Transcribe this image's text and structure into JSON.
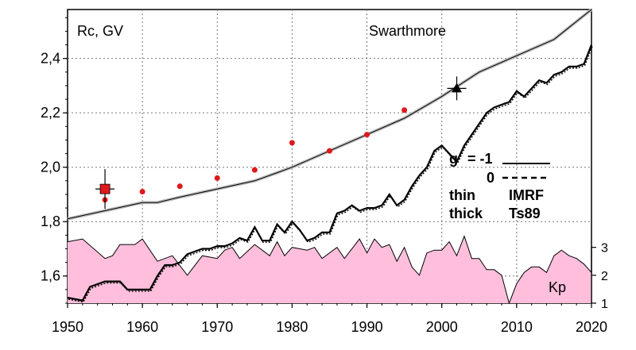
{
  "chart_data": {
    "type": "line",
    "ylabel": "Rc, GV",
    "station": "Swarthmore",
    "xlim": [
      1950,
      2020
    ],
    "ylim": [
      1.5,
      2.58
    ],
    "x_ticks": [
      "1950",
      "1960",
      "1970",
      "1980",
      "1990",
      "2000",
      "2010",
      "2020"
    ],
    "y_ticks": [
      "1,6",
      "1,8",
      "2,0",
      "2,2",
      "2,4"
    ],
    "legend": {
      "g_label": "g",
      "g_eq_label": "= -1",
      "g_zero_label": "0",
      "thin_label": "thin",
      "thick_label": "thick",
      "imrf_label": "IMRF",
      "ts89_label": "Ts89"
    },
    "series": [
      {
        "id": "imrf_g_minus1",
        "x": [
          1950,
          1955,
          1960,
          1962,
          1965,
          1970,
          1975,
          1978,
          1980,
          1985,
          1990,
          1995,
          2000,
          2005,
          2010,
          2015,
          2020
        ],
        "values": [
          1.81,
          1.84,
          1.87,
          1.87,
          1.89,
          1.92,
          1.95,
          1.98,
          2.0,
          2.06,
          2.12,
          2.18,
          2.26,
          2.35,
          2.41,
          2.47,
          2.58
        ]
      },
      {
        "id": "ts89_g_minus1",
        "x": [
          1950,
          1952,
          1953,
          1955,
          1957,
          1958,
          1959,
          1960,
          1961,
          1962,
          1963,
          1964,
          1965,
          1966,
          1967,
          1968,
          1969,
          1970,
          1971,
          1972,
          1973,
          1974,
          1975,
          1976,
          1977,
          1978,
          1979,
          1980,
          1981,
          1982,
          1983,
          1984,
          1985,
          1986,
          1987,
          1988,
          1989,
          1990,
          1991,
          1992,
          1993,
          1994,
          1995,
          1996,
          1997,
          1998,
          1999,
          2000,
          2001,
          2002,
          2003,
          2004,
          2005,
          2006,
          2007,
          2008,
          2009,
          2010,
          2011,
          2012,
          2013,
          2014,
          2015,
          2016,
          2017,
          2018,
          2019,
          2020
        ],
        "values": [
          1.52,
          1.51,
          1.56,
          1.58,
          1.58,
          1.55,
          1.55,
          1.55,
          1.55,
          1.6,
          1.64,
          1.64,
          1.65,
          1.68,
          1.69,
          1.7,
          1.7,
          1.71,
          1.71,
          1.72,
          1.74,
          1.73,
          1.78,
          1.73,
          1.73,
          1.79,
          1.76,
          1.8,
          1.77,
          1.73,
          1.74,
          1.76,
          1.76,
          1.83,
          1.84,
          1.86,
          1.84,
          1.85,
          1.85,
          1.86,
          1.9,
          1.86,
          1.88,
          1.93,
          1.97,
          2.0,
          2.06,
          2.08,
          2.05,
          2.02,
          2.08,
          2.12,
          2.16,
          2.2,
          2.22,
          2.23,
          2.24,
          2.28,
          2.26,
          2.29,
          2.32,
          2.31,
          2.34,
          2.35,
          2.37,
          2.37,
          2.38,
          2.45
        ]
      },
      {
        "id": "observed",
        "x": [
          1955,
          1960,
          1965,
          1970,
          1975,
          1980,
          1985,
          1990,
          1995
        ],
        "values": [
          1.88,
          1.91,
          1.93,
          1.96,
          1.99,
          2.09,
          2.06,
          2.12,
          2.21
        ]
      }
    ],
    "markers": [
      {
        "type": "square",
        "x": 1955,
        "y": 1.92,
        "color": "#e0191c"
      },
      {
        "type": "triangle",
        "x": 2002,
        "y": 2.29,
        "color": "#000000"
      }
    ],
    "kp": {
      "label": "Kp",
      "ticks": [
        "1",
        "2",
        "3"
      ],
      "ylim": [
        1,
        3.9
      ],
      "fill_color": "#ffbfdc",
      "x": [
        1950,
        1952,
        1955,
        1956,
        1957,
        1959,
        1960,
        1962,
        1964,
        1966,
        1968,
        1970,
        1971,
        1972,
        1973,
        1975,
        1977,
        1978,
        1979,
        1980,
        1982,
        1983,
        1984,
        1986,
        1987,
        1989,
        1990,
        1991,
        1992,
        1993,
        1994,
        1995,
        1996,
        1997,
        1998,
        1999,
        2000,
        2001,
        2002,
        2003,
        2004,
        2005,
        2006,
        2007,
        2008,
        2009,
        2010,
        2011,
        2012,
        2013,
        2014,
        2015,
        2016,
        2017,
        2018,
        2019,
        2020
      ],
      "values": [
        3.2,
        3.3,
        2.6,
        2.7,
        3.1,
        3.1,
        3.3,
        2.5,
        2.7,
        2.0,
        2.7,
        2.6,
        2.9,
        3.0,
        2.6,
        3.1,
        2.7,
        3.2,
        2.7,
        3.0,
        2.9,
        3.0,
        2.6,
        3.0,
        2.6,
        3.3,
        2.8,
        3.3,
        3.0,
        3.1,
        2.5,
        3.0,
        2.3,
        2.0,
        2.8,
        2.9,
        2.9,
        3.2,
        2.7,
        3.4,
        2.6,
        2.6,
        2.2,
        2.2,
        2.0,
        1.0,
        1.7,
        2.1,
        2.3,
        2.3,
        2.1,
        2.7,
        2.9,
        2.7,
        2.6,
        2.4,
        2.1
      ]
    }
  }
}
